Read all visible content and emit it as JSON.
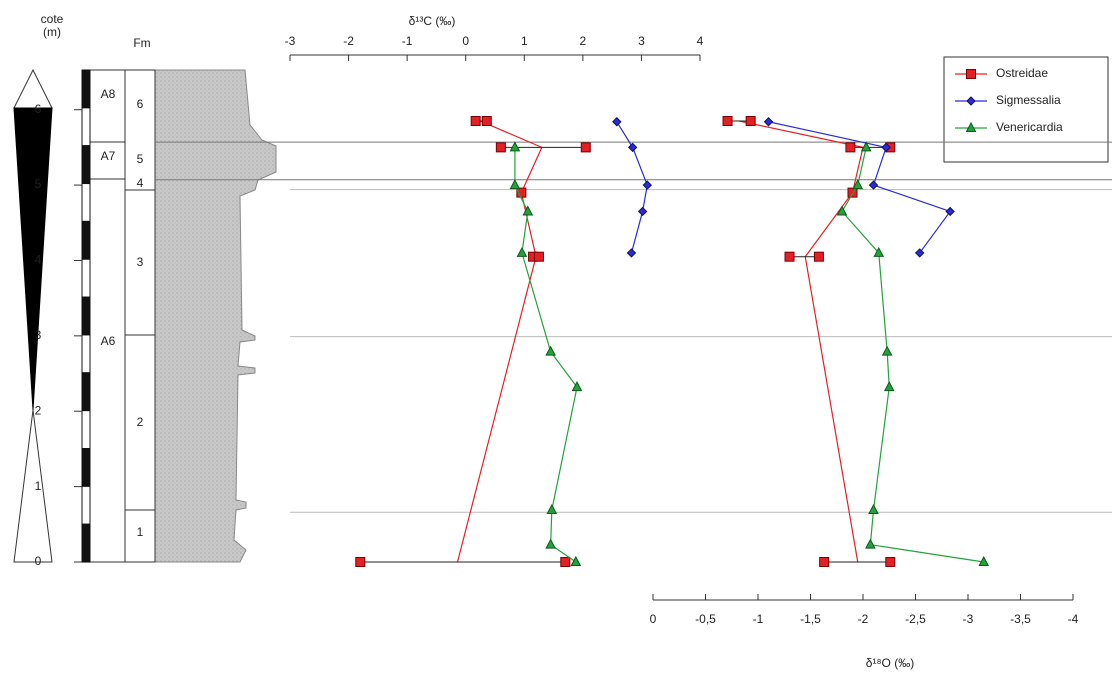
{
  "chart_data": {
    "type": "scatter",
    "xlabel": "δ¹³C (‰)",
    "x2label": "δ¹⁸O (‰)",
    "xlim": [
      -3,
      4
    ],
    "xticks": [
      -3,
      -2,
      -1,
      0,
      1,
      2,
      3,
      4
    ],
    "x2lim": [
      0,
      -4
    ],
    "x2ticks": [
      0,
      {
        "value": -0.5,
        "label": "-0,5"
      },
      -1,
      {
        "value": -1.5,
        "label": "-1,5"
      },
      -2,
      {
        "value": -2.5,
        "label": "-2,5"
      },
      -3,
      {
        "value": -3.5,
        "label": "-3,5"
      },
      -4
    ],
    "ylim": [
      0,
      6.5
    ],
    "yticks": [
      0,
      1,
      2,
      3,
      4,
      5,
      6
    ],
    "boundaries": [
      5.57,
      5.07,
      4.94,
      2.99,
      0.66
    ],
    "legend": "top-right",
    "series": [
      {
        "name": "Ostreidae",
        "color": "#e32026",
        "marker": "square",
        "c13": {
          "x": [
            0.17,
            0.36,
            0.6,
            2.05,
            0.95,
            1.15,
            1.25,
            -1.8,
            1.7
          ],
          "depth": [
            5.85,
            5.85,
            5.5,
            5.5,
            4.9,
            4.05,
            4.05,
            0,
            0
          ],
          "line_x": [
            0.25,
            1.3,
            0.95,
            1.2,
            -0.14
          ],
          "line_depth": [
            5.85,
            5.5,
            4.9,
            4.05,
            0
          ]
        },
        "o18": {
          "x": [
            -0.71,
            -0.93,
            -1.88,
            -2.26,
            -1.9,
            -1.3,
            -1.58,
            -1.63,
            -2.26
          ],
          "depth": [
            5.85,
            5.85,
            5.5,
            5.5,
            4.9,
            4.05,
            4.05,
            0,
            0
          ],
          "line_x": [
            -0.82,
            -2.0,
            -1.9,
            -1.45,
            -1.95
          ],
          "line_depth": [
            5.85,
            5.5,
            4.9,
            4.05,
            0
          ]
        }
      },
      {
        "name": "Sigmessalia",
        "color": "#2b2bd6",
        "marker": "diamond",
        "c13": {
          "x": [
            2.58,
            2.85,
            3.1,
            3.02,
            2.83
          ],
          "depth": [
            5.84,
            5.5,
            5.0,
            4.65,
            4.1
          ]
        },
        "o18": {
          "x": [
            -1.1,
            -2.22,
            -2.1,
            -2.83,
            -2.54
          ],
          "depth": [
            5.84,
            5.5,
            5.0,
            4.65,
            4.1
          ]
        }
      },
      {
        "name": "Venericardia",
        "color": "#22a33a",
        "marker": "triangle",
        "c13": {
          "x": [
            0.84,
            0.84,
            1.06,
            0.96,
            1.45,
            1.9,
            1.47,
            1.45,
            1.88
          ],
          "depth": [
            5.5,
            5.0,
            4.65,
            4.1,
            2.79,
            2.32,
            0.69,
            0.23,
            0
          ]
        },
        "o18": {
          "x": [
            -2.03,
            -1.95,
            -1.8,
            -2.15,
            -2.23,
            -2.25,
            -2.1,
            -2.07,
            -3.15
          ],
          "depth": [
            5.5,
            5.0,
            4.65,
            4.1,
            2.79,
            2.32,
            0.69,
            0.23,
            0
          ]
        }
      }
    ]
  },
  "log": {
    "cote": "cote",
    "unit_m": "(m)",
    "fm": "Fm",
    "units": [
      "A8",
      "A7",
      "A6"
    ],
    "formations": [
      "6",
      "5",
      "4",
      "3",
      "2",
      "1"
    ]
  }
}
